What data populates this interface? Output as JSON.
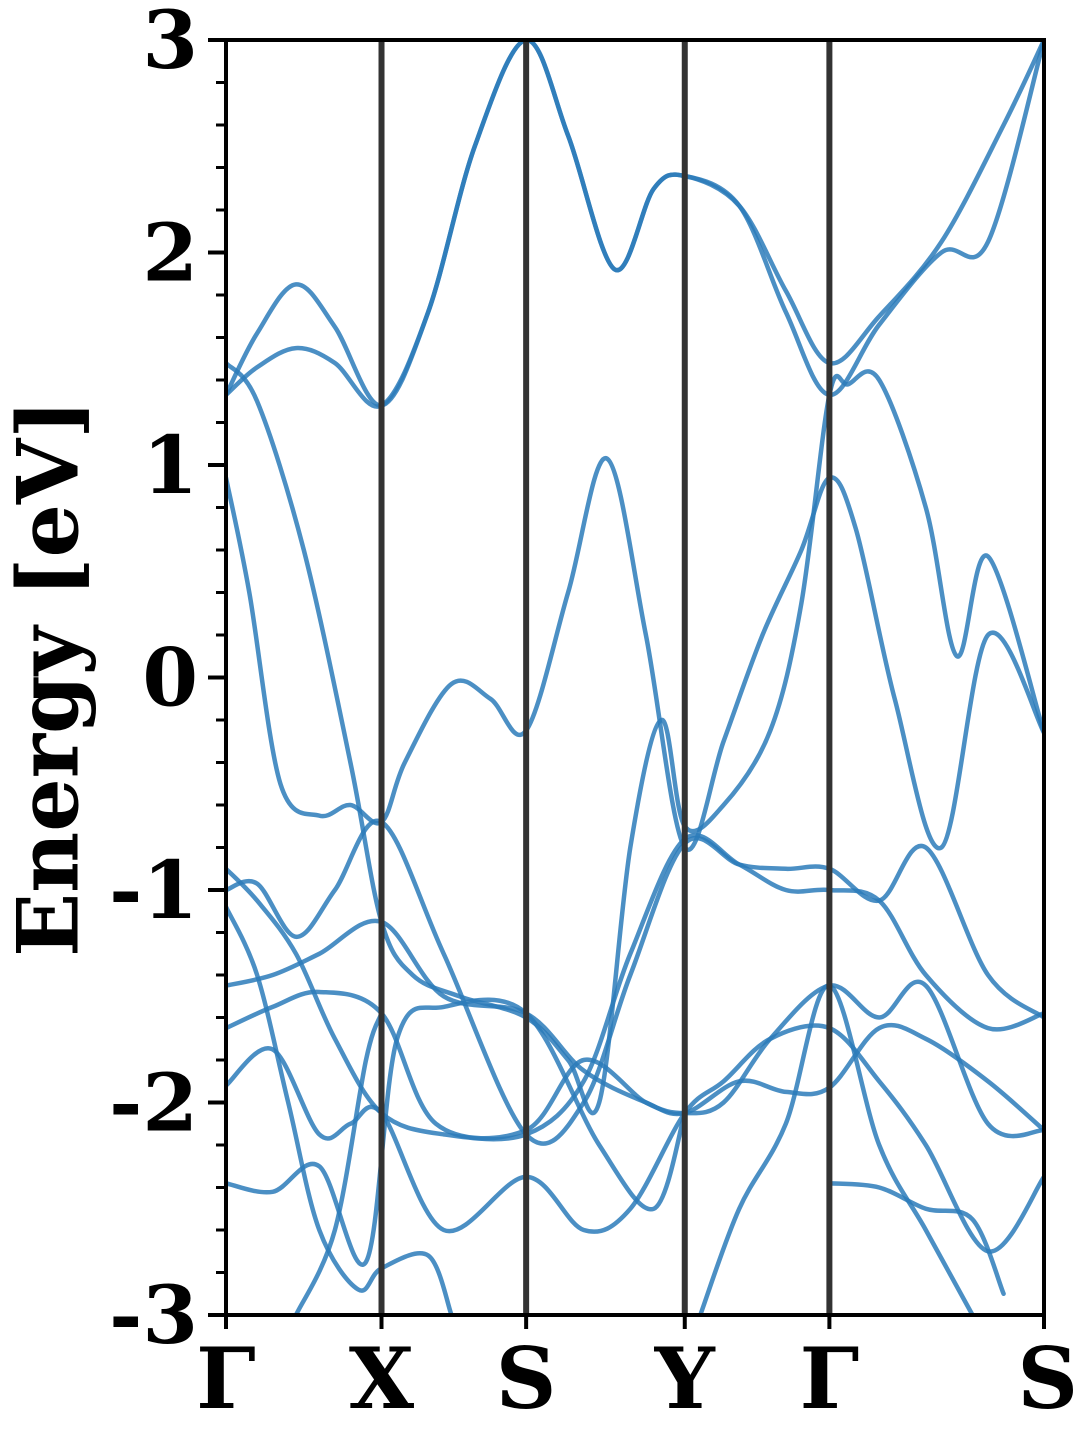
{
  "chart_data": {
    "type": "line",
    "title": "",
    "xlabel": "",
    "ylabel": "Energy [eV]",
    "ylim": [
      -3,
      3
    ],
    "y_ticks": [
      {
        "value": 3,
        "label": "3"
      },
      {
        "value": 2,
        "label": "2"
      },
      {
        "value": 1,
        "label": "1"
      },
      {
        "value": 0,
        "label": "0"
      },
      {
        "value": -1,
        "label": "-1"
      },
      {
        "value": -2,
        "label": "-2"
      },
      {
        "value": -3,
        "label": "-3"
      }
    ],
    "y_minor_step": 0.2,
    "k_path": [
      {
        "label": "Γ",
        "k": 0.0
      },
      {
        "label": "X",
        "k": 1.0
      },
      {
        "label": "S",
        "k": 1.93
      },
      {
        "label": "Y",
        "k": 2.95
      },
      {
        "label": "Γ",
        "k": 3.88
      },
      {
        "label": "S",
        "k": 5.26
      }
    ],
    "xlim": [
      0,
      5.26
    ],
    "grid": false,
    "legend": "none",
    "colors": {
      "bands": "#2b7bba",
      "high_symmetry_lines": "#333333",
      "axes": "#000000"
    },
    "bands": [
      {
        "k": [
          0,
          0.2,
          0.45,
          0.7,
          1.0,
          1.3,
          1.6,
          1.93,
          2.2,
          2.5,
          2.75,
          2.95,
          3.3,
          3.6,
          3.88,
          4.2,
          4.6,
          5.0,
          5.26
        ],
        "y": [
          1.33,
          1.62,
          1.85,
          1.65,
          1.28,
          1.72,
          2.5,
          3.0,
          2.55,
          1.92,
          2.3,
          2.36,
          2.22,
          1.82,
          1.48,
          1.7,
          2.05,
          2.6,
          3.0
        ]
      },
      {
        "k": [
          0,
          0.2,
          0.45,
          0.7,
          1.0,
          1.3,
          1.6,
          1.93,
          2.2,
          2.5,
          2.75,
          2.95,
          3.3,
          3.6,
          3.88,
          4.2,
          4.6,
          4.9,
          5.26
        ],
        "y": [
          1.33,
          1.46,
          1.55,
          1.48,
          1.28,
          1.72,
          2.5,
          3.0,
          2.55,
          1.92,
          2.3,
          2.36,
          2.22,
          1.72,
          1.33,
          1.66,
          2.0,
          2.05,
          3.0
        ]
      },
      {
        "k": [
          0,
          0.2,
          0.5,
          0.8,
          1.0,
          1.2,
          1.5,
          1.93,
          2.2,
          2.4,
          2.6,
          2.8,
          2.95,
          3.2,
          3.5,
          3.7,
          3.88,
          4.0,
          4.2,
          4.5,
          4.7,
          4.9,
          5.26
        ],
        "y": [
          1.48,
          1.3,
          0.6,
          -0.4,
          -1.15,
          -1.4,
          -1.5,
          -1.6,
          -1.8,
          -2.0,
          -0.8,
          -0.2,
          -0.7,
          -0.6,
          -0.25,
          0.35,
          1.33,
          1.38,
          1.4,
          0.8,
          0.1,
          0.57,
          -0.26
        ]
      },
      {
        "k": [
          0,
          0.15,
          0.35,
          0.6,
          0.8,
          1.0,
          1.15,
          1.45,
          1.7,
          1.93,
          2.2,
          2.45,
          2.7,
          2.95,
          3.2,
          3.45,
          3.7,
          3.88,
          4.05,
          4.3,
          4.6,
          4.9,
          5.26
        ],
        "y": [
          0.94,
          0.4,
          -0.5,
          -0.65,
          -0.6,
          -0.68,
          -0.4,
          -0.03,
          -0.1,
          -0.25,
          0.4,
          1.03,
          0.2,
          -0.8,
          -0.3,
          0.2,
          0.6,
          0.94,
          0.7,
          -0.1,
          -0.8,
          0.2,
          -0.26
        ]
      },
      {
        "k": [
          0,
          0.2,
          0.45,
          0.7,
          1.0,
          1.4,
          1.93,
          2.3,
          2.6,
          2.95,
          3.3,
          3.6,
          3.88,
          4.2,
          4.5,
          4.9,
          5.26
        ],
        "y": [
          -1.0,
          -0.97,
          -1.22,
          -1.0,
          -0.68,
          -1.3,
          -2.15,
          -2.0,
          -1.4,
          -0.78,
          -0.88,
          -0.9,
          -0.9,
          -1.05,
          -0.8,
          -1.4,
          -1.6
        ]
      },
      {
        "k": [
          0,
          0.2,
          0.45,
          0.7,
          1.0,
          1.4,
          1.93,
          2.3,
          2.6,
          2.95,
          3.3,
          3.6,
          3.88,
          4.2,
          4.5,
          4.9,
          5.26
        ],
        "y": [
          -0.9,
          -1.05,
          -1.3,
          -1.7,
          -2.05,
          -2.15,
          -2.15,
          -1.9,
          -1.3,
          -0.76,
          -0.88,
          -1.0,
          -1.0,
          -1.05,
          -1.4,
          -1.65,
          -1.58
        ]
      },
      {
        "k": [
          0,
          0.3,
          0.6,
          1.0,
          1.4,
          1.93,
          2.3,
          2.7,
          2.95,
          3.3,
          3.6,
          3.88,
          4.2,
          4.5,
          4.9,
          5.26
        ],
        "y": [
          -1.45,
          -1.4,
          -1.3,
          -1.15,
          -1.5,
          -1.58,
          -1.85,
          -2.0,
          -2.05,
          -1.9,
          -1.95,
          -1.93,
          -1.65,
          -1.7,
          -1.9,
          -2.13
        ]
      },
      {
        "k": [
          0,
          0.3,
          0.6,
          1.0,
          1.35,
          1.93,
          2.3,
          2.7,
          2.95,
          3.2,
          3.5,
          3.88,
          4.2,
          4.5,
          4.9,
          5.26
        ],
        "y": [
          -1.65,
          -1.55,
          -1.48,
          -1.58,
          -2.1,
          -2.13,
          -1.8,
          -2.0,
          -2.05,
          -2.0,
          -1.7,
          -1.45,
          -1.6,
          -1.45,
          -2.1,
          -2.13
        ]
      },
      {
        "k": [
          0,
          0.3,
          0.6,
          0.8,
          1.0,
          1.4,
          1.93,
          2.3,
          2.6,
          2.95,
          3.2,
          3.5,
          3.88,
          4.2,
          4.5,
          4.9,
          5.26
        ],
        "y": [
          -1.92,
          -1.75,
          -2.15,
          -2.1,
          -2.05,
          -2.6,
          -2.35,
          -2.6,
          -2.5,
          -2.05,
          -1.9,
          -1.7,
          -1.65,
          -1.9,
          -2.2,
          -2.7,
          -2.35
        ]
      },
      {
        "k": [
          0,
          0.2,
          0.4,
          0.6,
          0.85,
          1.0,
          1.3,
          1.45
        ],
        "y": [
          -1.08,
          -1.4,
          -2.0,
          -2.6,
          -2.88,
          -2.78,
          -2.72,
          -3.0
        ]
      },
      {
        "k": [
          0,
          0.3,
          0.6,
          0.9,
          1.1,
          1.4,
          1.93,
          2.4,
          2.75,
          2.95
        ],
        "y": [
          -2.38,
          -2.42,
          -2.3,
          -2.75,
          -1.7,
          -1.55,
          -1.58,
          -2.2,
          -2.5,
          -2.05
        ]
      },
      {
        "k": [
          0.45,
          0.7,
          0.9,
          1.0
        ],
        "y": [
          -3.0,
          -2.6,
          -1.8,
          -1.58
        ]
      },
      {
        "k": [
          3.05,
          3.3,
          3.6,
          3.88,
          4.2,
          4.5,
          4.8
        ],
        "y": [
          -3.0,
          -2.5,
          -2.1,
          -1.45,
          -2.2,
          -2.6,
          -3.0
        ]
      },
      {
        "k": [
          3.88,
          4.2,
          4.5,
          4.8,
          5.0
        ],
        "y": [
          -2.38,
          -2.4,
          -2.5,
          -2.55,
          -2.9
        ]
      }
    ]
  }
}
